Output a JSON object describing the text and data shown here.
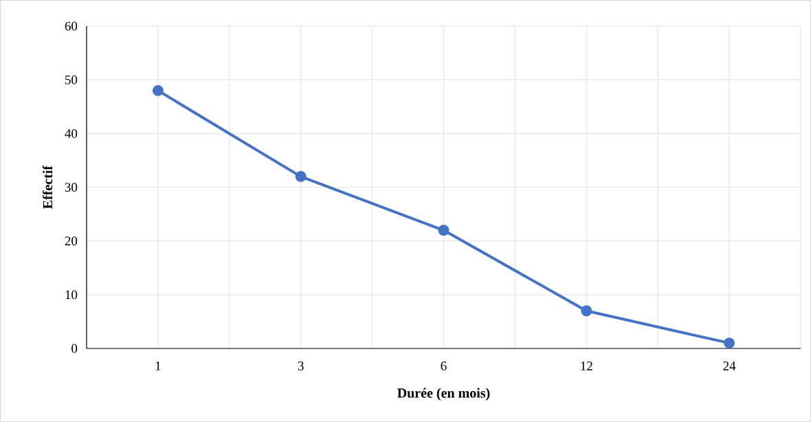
{
  "chart_data": {
    "type": "line",
    "xlabel": "Durée (en mois)",
    "ylabel": "Effectif",
    "categories": [
      "1",
      "3",
      "6",
      "12",
      "24"
    ],
    "series": [
      {
        "color": "#4472c4",
        "values": [
          48,
          32,
          22,
          7,
          1
        ]
      }
    ],
    "ylim": [
      0,
      60
    ],
    "yticks": [
      0,
      10,
      20,
      30,
      40,
      50,
      60
    ],
    "grid": true,
    "marker": "circle",
    "line_style": "solid"
  }
}
